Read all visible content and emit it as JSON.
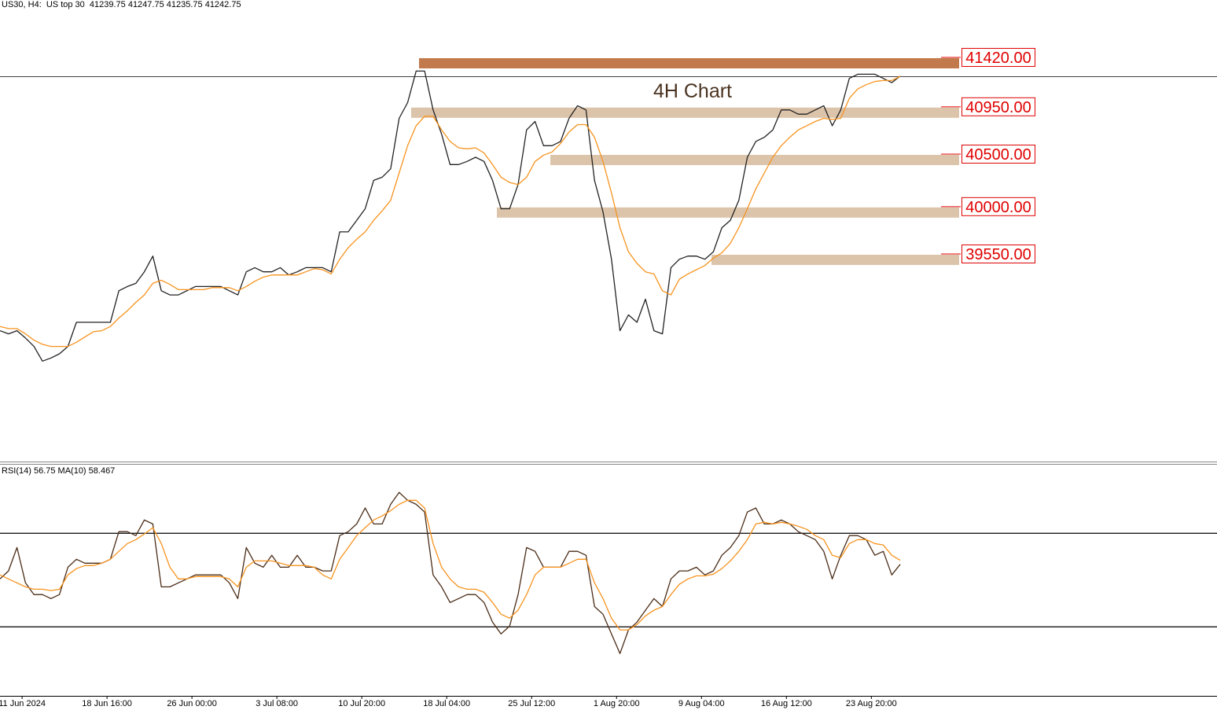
{
  "chart_data": [
    {
      "type": "line",
      "header": "US30, H4:  US top 30  41239.75 41247.75 41235.75 41242.75",
      "annotation": "4H Chart",
      "xlim": [
        0,
        143.3
      ],
      "ylim": [
        37575,
        41966
      ],
      "series": [
        {
          "color": "#222222",
          "values": [
            38820,
            38790,
            38820,
            38750,
            38670,
            38530,
            38560,
            38600,
            38670,
            38900,
            38900,
            38900,
            38900,
            38900,
            39200,
            39240,
            39270,
            39380,
            39530,
            39200,
            39160,
            39160,
            39200,
            39240,
            39240,
            39240,
            39240,
            39200,
            39160,
            39380,
            39420,
            39380,
            39380,
            39420,
            39350,
            39380,
            39420,
            39420,
            39420,
            39380,
            39760,
            39760,
            39870,
            39980,
            40250,
            40280,
            40360,
            40840,
            40990,
            41290,
            41290,
            40920,
            40690,
            40400,
            40400,
            40430,
            40470,
            40430,
            40250,
            39980,
            39980,
            40210,
            40730,
            40810,
            40580,
            40580,
            40620,
            40840,
            40960,
            40920,
            40250,
            39950,
            39500,
            38820,
            38970,
            38900,
            39120,
            38820,
            38790,
            39420,
            39500,
            39530,
            39530,
            39500,
            39570,
            39800,
            39870,
            40060,
            40470,
            40620,
            40660,
            40730,
            40920,
            40920,
            40880,
            40880,
            40920,
            40960,
            40770,
            40920,
            41220,
            41260,
            41260,
            41260,
            41220,
            41180,
            41242.75
          ]
        },
        {
          "color": "#f7931e",
          "values": [
            38860,
            38840,
            38840,
            38790,
            38730,
            38690,
            38670,
            38670,
            38670,
            38710,
            38760,
            38810,
            38820,
            38860,
            38940,
            39010,
            39090,
            39160,
            39270,
            39300,
            39260,
            39210,
            39210,
            39210,
            39210,
            39230,
            39230,
            39230,
            39200,
            39240,
            39290,
            39330,
            39350,
            39350,
            39350,
            39350,
            39380,
            39410,
            39400,
            39360,
            39500,
            39610,
            39690,
            39760,
            39870,
            39960,
            40060,
            40320,
            40580,
            40770,
            40860,
            40860,
            40730,
            40620,
            40560,
            40550,
            40560,
            40510,
            40400,
            40280,
            40230,
            40210,
            40280,
            40430,
            40490,
            40520,
            40600,
            40710,
            40780,
            40780,
            40660,
            40430,
            40130,
            39800,
            39570,
            39460,
            39380,
            39360,
            39200,
            39160,
            39310,
            39360,
            39400,
            39440,
            39510,
            39560,
            39650,
            39800,
            39980,
            40170,
            40320,
            40470,
            40580,
            40660,
            40730,
            40770,
            40810,
            40840,
            40830,
            40840,
            41030,
            41120,
            41160,
            41190,
            41200,
            41200,
            41240
          ]
        }
      ],
      "levels": [
        {
          "value": 41420,
          "label": "41420.00"
        },
        {
          "value": 40950,
          "label": "40950.00"
        },
        {
          "value": 40500,
          "label": "40500.00"
        },
        {
          "value": 40000,
          "label": "40000.00"
        },
        {
          "value": 39550,
          "label": "39550.00"
        }
      ],
      "level_colors": [
        "#c27a4c",
        "#dcc4ab",
        "#dcc4ab",
        "#dcc4ab",
        "#dcc4ab"
      ],
      "label_color": "#e00000"
    },
    {
      "type": "line",
      "title": "RSI(14) 56.75 MA(10) 58.467",
      "xlim": [
        0,
        143.3
      ],
      "ylim": [
        0,
        100
      ],
      "levels": [
        30,
        70
      ],
      "series": [
        {
          "color": "#4a2c17",
          "values": [
            50.5,
            53.9,
            63.9,
            48.8,
            43.8,
            43.8,
            42.1,
            43.8,
            55.5,
            58.9,
            57.2,
            57.2,
            57.2,
            58.9,
            70.7,
            70.7,
            69.0,
            75.7,
            74.0,
            47.1,
            47.1,
            48.8,
            50.5,
            52.2,
            52.2,
            52.2,
            52.2,
            48.8,
            42.1,
            63.9,
            57.2,
            55.5,
            60.6,
            55.5,
            55.5,
            60.6,
            55.5,
            55.5,
            53.9,
            53.9,
            69.0,
            70.7,
            74.0,
            80.8,
            74.0,
            74.0,
            82.4,
            87.5,
            84.1,
            82.4,
            79.1,
            52.2,
            47.1,
            40.4,
            42.1,
            43.8,
            43.8,
            40.4,
            32.0,
            27.0,
            30.3,
            43.8,
            63.9,
            62.3,
            55.5,
            55.5,
            55.5,
            62.3,
            62.3,
            60.6,
            38.7,
            35.4,
            27.0,
            18.6,
            28.7,
            32.0,
            37.1,
            42.1,
            38.7,
            50.5,
            53.9,
            53.9,
            55.5,
            52.2,
            53.9,
            60.6,
            63.9,
            69.0,
            79.1,
            80.8,
            74.0,
            74.0,
            75.7,
            74.0,
            70.7,
            69.0,
            67.3,
            62.3,
            50.5,
            60.6,
            69.0,
            69.0,
            67.3,
            60.6,
            62.3,
            52.2,
            56.75
          ]
        },
        {
          "color": "#f7931e",
          "values": [
            52.2,
            50.5,
            48.8,
            47.1,
            46.1,
            46.1,
            45.5,
            46.1,
            52.2,
            54.9,
            56.2,
            56.2,
            57.2,
            58.9,
            62.3,
            65.6,
            67.3,
            69.7,
            72.4,
            65.6,
            55.5,
            50.5,
            50.5,
            51.5,
            51.5,
            51.5,
            51.5,
            50.5,
            47.1,
            55.5,
            58.2,
            58.2,
            58.2,
            57.2,
            56.2,
            56.2,
            56.2,
            55.5,
            52.2,
            50.5,
            58.9,
            63.9,
            69.0,
            72.4,
            75.7,
            77.4,
            79.7,
            82.4,
            84.1,
            84.1,
            80.8,
            65.6,
            55.5,
            50.5,
            47.1,
            46.1,
            46.1,
            44.8,
            40.4,
            35.4,
            33.7,
            37.1,
            43.8,
            52.2,
            55.5,
            55.5,
            55.5,
            57.2,
            58.9,
            58.9,
            48.8,
            42.1,
            33.7,
            28.7,
            28.7,
            31.0,
            34.7,
            37.1,
            38.7,
            43.8,
            48.2,
            50.5,
            51.8,
            51.8,
            52.5,
            54.9,
            58.2,
            62.3,
            67.3,
            74.0,
            74.7,
            74.0,
            74.7,
            74.0,
            73.0,
            71.7,
            69.0,
            67.3,
            60.6,
            59.6,
            65.6,
            67.3,
            67.3,
            65.6,
            65.0,
            60.6,
            58.467
          ]
        }
      ],
      "xticks": [
        {
          "value": 2.6,
          "label": "11 Jun 2024"
        },
        {
          "value": 12.6,
          "label": "18 Jun 16:00"
        },
        {
          "value": 22.6,
          "label": "26 Jun 00:00"
        },
        {
          "value": 32.6,
          "label": "3 Jul 08:00"
        },
        {
          "value": 42.6,
          "label": "10 Jul 20:00"
        },
        {
          "value": 52.6,
          "label": "18 Jul 04:00"
        },
        {
          "value": 62.6,
          "label": "25 Jul 12:00"
        },
        {
          "value": 72.6,
          "label": "1 Aug 20:00"
        },
        {
          "value": 82.6,
          "label": "9 Aug 04:00"
        },
        {
          "value": 92.6,
          "label": "16 Aug 12:00"
        },
        {
          "value": 102.6,
          "label": "23 Aug 20:00"
        }
      ]
    }
  ]
}
